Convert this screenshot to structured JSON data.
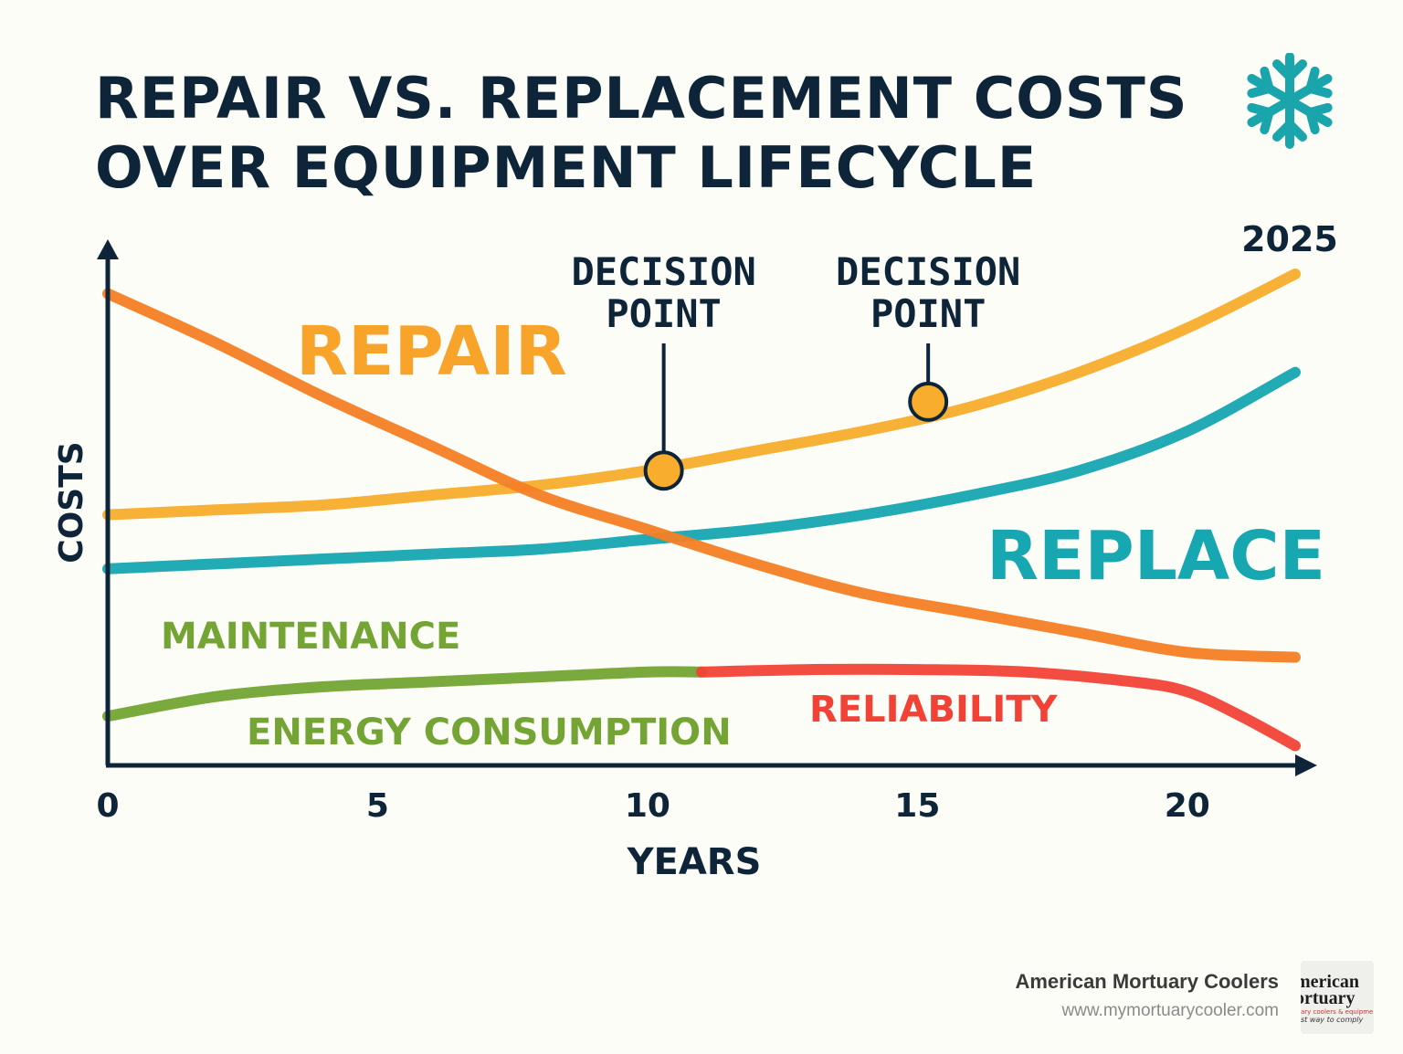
{
  "header": {
    "title_line1": "REPAIR VS. REPLACEMENT COSTS",
    "title_line2": "OVER EQUIPMENT LIFECYCLE",
    "badge_year": "2025",
    "badge_icon": "snowflake-icon",
    "badge_color": "#1aa5ad"
  },
  "chart_data": {
    "type": "line",
    "title": "REPAIR VS. REPLACEMENT COSTS OVER EQUIPMENT LIFECYCLE",
    "xlabel": "YEARS",
    "ylabel": "COSTS",
    "xlim": [
      0,
      22
    ],
    "ylim": [
      0,
      100
    ],
    "xticks": [
      "0",
      "5",
      "10",
      "15",
      "20"
    ],
    "xtick_values": [
      0,
      5,
      10,
      15,
      20
    ],
    "grid": false,
    "series": [
      {
        "name": "REPAIR",
        "color": "#f8ad2c",
        "x": [
          0,
          2,
          4,
          6,
          8,
          10,
          12,
          14,
          16,
          18,
          20,
          22
        ],
        "y": [
          51,
          52,
          53,
          55,
          57,
          60,
          64,
          68,
          73,
          80,
          89,
          100
        ]
      },
      {
        "name": "REPLACE",
        "color": "#16a7b1",
        "x": [
          0,
          2,
          4,
          6,
          8,
          10,
          12,
          14,
          16,
          18,
          20,
          22
        ],
        "y": [
          40,
          41,
          42,
          43,
          44,
          46,
          48,
          51,
          55,
          60,
          68,
          80
        ]
      },
      {
        "name": "",
        "color": "#f47f24",
        "x": [
          0,
          2,
          4,
          6,
          8,
          10,
          12,
          14,
          16,
          18,
          20,
          22
        ],
        "y": [
          96,
          86,
          75,
          65,
          55,
          48,
          41,
          35,
          31,
          27,
          23,
          22
        ]
      },
      {
        "name": "ENERGY CONSUMPTION",
        "color": "#73a434",
        "x": [
          0,
          2,
          4,
          6,
          8,
          10,
          11
        ],
        "y": [
          10,
          14,
          16,
          17,
          18,
          19,
          19
        ]
      },
      {
        "name": "RELIABILITY",
        "color": "#f24236",
        "x": [
          11,
          13,
          15,
          17,
          19,
          20,
          21,
          22
        ],
        "y": [
          19,
          19.5,
          19.5,
          19,
          17,
          15,
          10,
          4
        ]
      }
    ],
    "labels": [
      {
        "text": "REPAIR",
        "color": "#f8a42b"
      },
      {
        "text": "REPLACE",
        "color": "#16a7b1"
      },
      {
        "text": "MAINTENANCE",
        "color": "#73a434"
      },
      {
        "text": "ENERGY CONSUMPTION",
        "color": "#73a434"
      },
      {
        "text": "RELIABILITY",
        "color": "#f24236"
      }
    ],
    "annotations": [
      {
        "line1": "DECISION",
        "line2": "POINT",
        "x": 10.3,
        "y": 60
      },
      {
        "line1": "DECISION",
        "line2": "POINT",
        "x": 15.2,
        "y": 74
      }
    ],
    "axis_color": "#0e2438"
  },
  "footer": {
    "company": "American Mortuary Coolers",
    "url": "www.mymortuarycooler.com",
    "logo_line1": "merican",
    "logo_line2": "ortuary",
    "logo_line3": "ary coolers & equipment",
    "logo_line4": "st way to comply"
  }
}
